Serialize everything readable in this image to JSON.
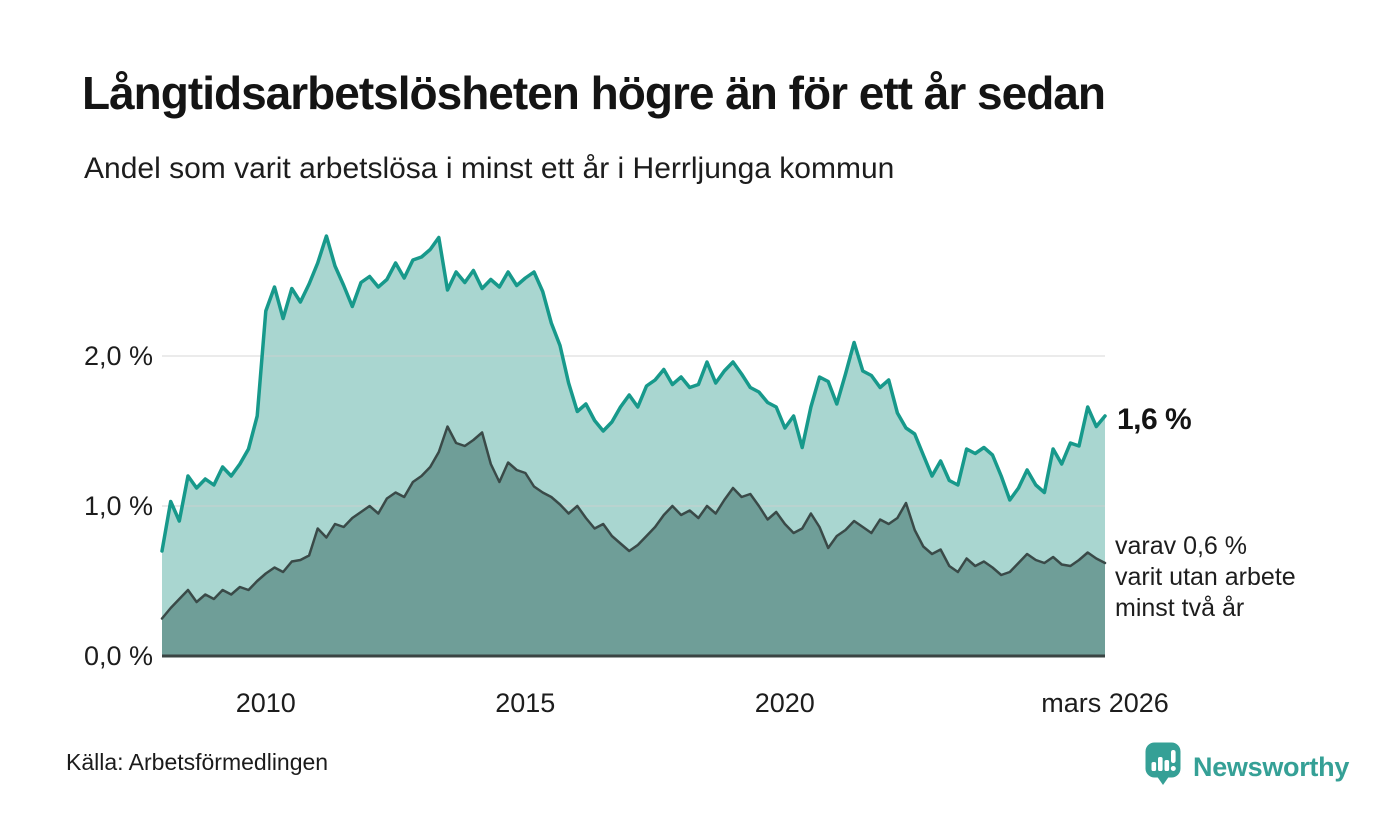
{
  "header": {
    "title": "Långtidsarbetslösheten högre än för ett år sedan",
    "subtitle": "Andel som varit arbetslösa i minst ett år i Herrljunga kommun"
  },
  "chart_data": {
    "type": "area",
    "title": "Långtidsarbetslösheten högre än för ett år sedan",
    "subtitle": "Andel som varit arbetslösa i minst ett år i Herrljunga kommun",
    "unit": "%",
    "x_domain": [
      2008.0,
      2026.17
    ],
    "x_step_years": 0.1667,
    "ylim": [
      0,
      2.8
    ],
    "grid": "horizontal",
    "legend_position": "none",
    "x_ticks": [
      {
        "label": "2010",
        "year": 2010
      },
      {
        "label": "2015",
        "year": 2015
      },
      {
        "label": "2020",
        "year": 2020
      },
      {
        "label": "mars 2026",
        "year": 2026.17
      }
    ],
    "y_ticks": [
      {
        "label": "0,0 %",
        "value": 0
      },
      {
        "label": "1,0 %",
        "value": 1
      },
      {
        "label": "2,0 %",
        "value": 2
      }
    ],
    "series": [
      {
        "name": "Andel arbetslösa minst ett år",
        "line_color": "#17998b",
        "fill_color": "#a9d6d0",
        "line_width": 3.5,
        "latest_value": 1.6,
        "values": [
          0.7,
          1.03,
          0.9,
          1.2,
          1.12,
          1.18,
          1.14,
          1.26,
          1.2,
          1.28,
          1.38,
          1.6,
          2.3,
          2.46,
          2.25,
          2.45,
          2.36,
          2.48,
          2.62,
          2.8,
          2.6,
          2.47,
          2.33,
          2.49,
          2.53,
          2.46,
          2.51,
          2.62,
          2.52,
          2.64,
          2.66,
          2.71,
          2.79,
          2.44,
          2.56,
          2.49,
          2.57,
          2.45,
          2.51,
          2.46,
          2.56,
          2.47,
          2.52,
          2.56,
          2.43,
          2.22,
          2.07,
          1.82,
          1.63,
          1.68,
          1.57,
          1.5,
          1.56,
          1.66,
          1.74,
          1.66,
          1.8,
          1.84,
          1.91,
          1.81,
          1.86,
          1.79,
          1.81,
          1.96,
          1.82,
          1.9,
          1.96,
          1.88,
          1.79,
          1.76,
          1.69,
          1.66,
          1.52,
          1.6,
          1.39,
          1.66,
          1.86,
          1.83,
          1.68,
          1.88,
          2.09,
          1.9,
          1.87,
          1.79,
          1.84,
          1.62,
          1.52,
          1.48,
          1.34,
          1.2,
          1.3,
          1.17,
          1.14,
          1.38,
          1.35,
          1.39,
          1.34,
          1.2,
          1.04,
          1.12,
          1.24,
          1.14,
          1.09,
          1.38,
          1.28,
          1.42,
          1.4,
          1.66,
          1.53,
          1.6
        ]
      },
      {
        "name": "Varav utan arbete minst två år",
        "line_color": "#3a4a48",
        "fill_color": "#6f9e98",
        "line_width": 2.5,
        "latest_value": 0.6,
        "values": [
          0.25,
          0.32,
          0.38,
          0.44,
          0.36,
          0.41,
          0.38,
          0.44,
          0.41,
          0.46,
          0.44,
          0.5,
          0.55,
          0.59,
          0.56,
          0.63,
          0.64,
          0.67,
          0.85,
          0.79,
          0.88,
          0.86,
          0.92,
          0.96,
          1.0,
          0.95,
          1.05,
          1.09,
          1.06,
          1.16,
          1.2,
          1.26,
          1.36,
          1.53,
          1.42,
          1.4,
          1.44,
          1.49,
          1.28,
          1.16,
          1.29,
          1.24,
          1.22,
          1.13,
          1.09,
          1.06,
          1.01,
          0.95,
          1.0,
          0.92,
          0.85,
          0.88,
          0.8,
          0.75,
          0.7,
          0.74,
          0.8,
          0.86,
          0.94,
          1.0,
          0.94,
          0.97,
          0.92,
          1.0,
          0.95,
          1.04,
          1.12,
          1.06,
          1.08,
          1.0,
          0.91,
          0.96,
          0.88,
          0.82,
          0.85,
          0.95,
          0.86,
          0.72,
          0.8,
          0.84,
          0.9,
          0.86,
          0.82,
          0.91,
          0.88,
          0.92,
          1.02,
          0.84,
          0.73,
          0.68,
          0.71,
          0.6,
          0.56,
          0.65,
          0.6,
          0.63,
          0.59,
          0.54,
          0.56,
          0.62,
          0.68,
          0.64,
          0.62,
          0.66,
          0.61,
          0.6,
          0.64,
          0.69,
          0.65,
          0.62
        ]
      }
    ],
    "annotations": {
      "latest_total": "1,6 %",
      "sub_line1": "varav 0,6 %",
      "sub_line2": "varit utan arbete",
      "sub_line3": "minst två år"
    },
    "colors": {
      "gridline": "#dedede",
      "baseline": "#3a4443",
      "text": "#1d1d1d"
    }
  },
  "footer": {
    "source": "Källa: Arbetsförmedlingen",
    "brand_name": "Newsworthy",
    "brand_color": "#35a096"
  }
}
